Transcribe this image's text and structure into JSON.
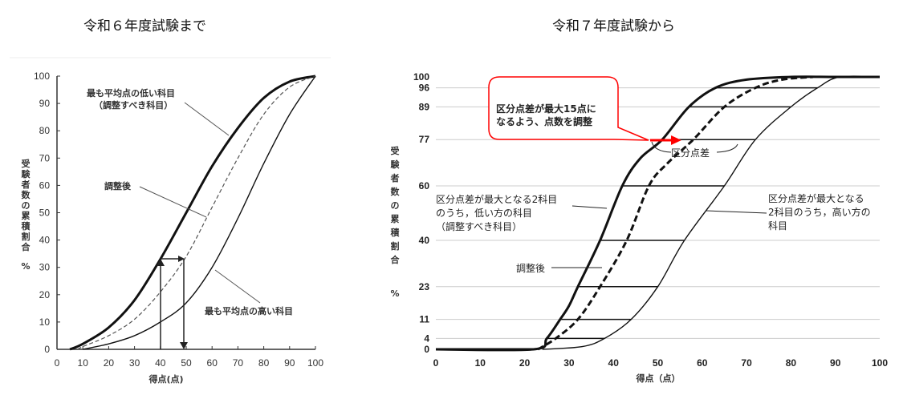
{
  "titles": {
    "left": "令和６年度試験まで",
    "right": "令和７年度試験から"
  },
  "chart_data": [
    {
      "type": "line",
      "title": "令和６年度試験まで",
      "xlabel": "得点(点)",
      "ylabel": "受験者数の累積割合 %",
      "xlim": [
        0,
        100
      ],
      "ylim": [
        0,
        100
      ],
      "x_ticks": [
        0,
        10,
        20,
        30,
        40,
        50,
        60,
        70,
        80,
        90,
        100
      ],
      "y_ticks": [
        0,
        10,
        20,
        30,
        40,
        50,
        60,
        70,
        80,
        90,
        100
      ],
      "grid": false,
      "series": [
        {
          "name": "最も平均点の低い科目（調整すべき科目）",
          "style": "thick-solid",
          "x": [
            5,
            10,
            20,
            30,
            40,
            50,
            60,
            70,
            80,
            90,
            100
          ],
          "y": [
            0,
            2,
            8,
            18,
            33,
            50,
            67,
            81,
            92,
            98,
            100
          ]
        },
        {
          "name": "調整後",
          "style": "dashed",
          "x": [
            8,
            10,
            20,
            30,
            40,
            50,
            60,
            70,
            80,
            90,
            100
          ],
          "y": [
            0,
            1,
            5,
            11,
            21,
            34,
            52,
            70,
            86,
            96,
            100
          ]
        },
        {
          "name": "最も平均点の高い科目",
          "style": "thin-solid",
          "x": [
            10,
            20,
            30,
            40,
            50,
            60,
            70,
            80,
            90,
            100
          ],
          "y": [
            0,
            2,
            5,
            10,
            17,
            30,
            48,
            68,
            86,
            100
          ]
        }
      ],
      "annotations": [
        {
          "text": "最も平均点の低い科目",
          "line2": "（調整すべき科目）"
        },
        {
          "text": "調整後"
        },
        {
          "text": "最も平均点の高い科目"
        },
        {
          "type": "arrow",
          "description": "x=40 up to low curve (~33%), across to adjusted curve, down to x=49"
        }
      ]
    },
    {
      "type": "line",
      "title": "令和７年度試験から",
      "xlabel": "得点（点）",
      "ylabel": "受験者数の累積割合 %",
      "xlim": [
        0,
        100
      ],
      "ylim": [
        0,
        100
      ],
      "x_ticks": [
        0,
        10,
        20,
        30,
        40,
        50,
        60,
        70,
        80,
        90,
        100
      ],
      "y_ticks": [
        0,
        4,
        11,
        23,
        40,
        60,
        77,
        89,
        96,
        100
      ],
      "grid": true,
      "series": [
        {
          "name": "区分点差が最大となる2科目のうち，低い方の科目（調整すべき科目）",
          "style": "thick-solid",
          "x": [
            0,
            22,
            25,
            28,
            30,
            32,
            37,
            42,
            46,
            51,
            57,
            63,
            70,
            80,
            90,
            100
          ],
          "y": [
            0,
            0,
            4,
            11,
            16,
            23,
            40,
            60,
            70,
            77,
            89,
            96,
            99,
            100,
            100,
            100
          ]
        },
        {
          "name": "調整後",
          "style": "dashed",
          "x": [
            23,
            27,
            32,
            37,
            43,
            48,
            52,
            58,
            65,
            72,
            78,
            85
          ],
          "y": [
            0,
            4,
            11,
            23,
            40,
            60,
            68,
            77,
            89,
            96,
            99,
            100
          ]
        },
        {
          "name": "区分点差が最大となる2科目のうち，高い方の科目",
          "style": "thin-solid",
          "x": [
            24,
            33,
            38,
            44,
            50,
            56,
            65,
            72,
            80,
            86,
            91,
            100
          ],
          "y": [
            0,
            1,
            4,
            11,
            23,
            40,
            60,
            77,
            89,
            96,
            100,
            100
          ]
        }
      ],
      "division_lines": [
        {
          "y": 4,
          "x_from": 25,
          "x_to": 38
        },
        {
          "y": 11,
          "x_from": 28,
          "x_to": 44
        },
        {
          "y": 23,
          "x_from": 32,
          "x_to": 50
        },
        {
          "y": 40,
          "x_from": 37,
          "x_to": 56
        },
        {
          "y": 60,
          "x_from": 42,
          "x_to": 65
        },
        {
          "y": 77,
          "x_from": 51,
          "x_to": 72
        },
        {
          "y": 89,
          "x_from": 57,
          "x_to": 80
        },
        {
          "y": 96,
          "x_from": 63,
          "x_to": 86
        }
      ],
      "annotations": [
        {
          "text": "区分点差が最大15点に",
          "line2": "なるよう、点数を調整",
          "style": "red-callout"
        },
        {
          "text": "区分点差"
        },
        {
          "text": "区分点差が最大となる2科目",
          "line2": "のうち，低い方の科目",
          "line3": "（調整すべき科目）"
        },
        {
          "text": "区分点差が最大となる",
          "line2": "2科目のうち，高い方の",
          "line3": "科目"
        },
        {
          "text": "調整後"
        }
      ],
      "accent_color": "#ff0000"
    }
  ],
  "left": {
    "ylabel_chars": [
      "受",
      "験",
      "者",
      "数",
      "の",
      "累",
      "積",
      "割",
      "合"
    ],
    "ylabel_unit": "%",
    "xlabel": "得点(点)",
    "ann_low_1": "最も平均点の低い科目",
    "ann_low_2": "（調整すべき科目）",
    "ann_adj": "調整後",
    "ann_high": "最も平均点の高い科目"
  },
  "right": {
    "ylabel_chars": [
      "受",
      "験",
      "者",
      "数",
      "の",
      "累",
      "積",
      "割",
      "合"
    ],
    "ylabel_unit": "%",
    "xlabel": "得点（点）",
    "callout_1": "区分点差が最大15点に",
    "callout_2": "なるよう、点数を調整",
    "ann_diff": "区分点差",
    "ann_low_1": "区分点差が最大となる2科目",
    "ann_low_2": "のうち，低い方の科目",
    "ann_low_3": "（調整すべき科目）",
    "ann_high_1": "区分点差が最大となる",
    "ann_high_2": "2科目のうち，高い方の",
    "ann_high_3": "科目",
    "ann_adj": "調整後"
  }
}
